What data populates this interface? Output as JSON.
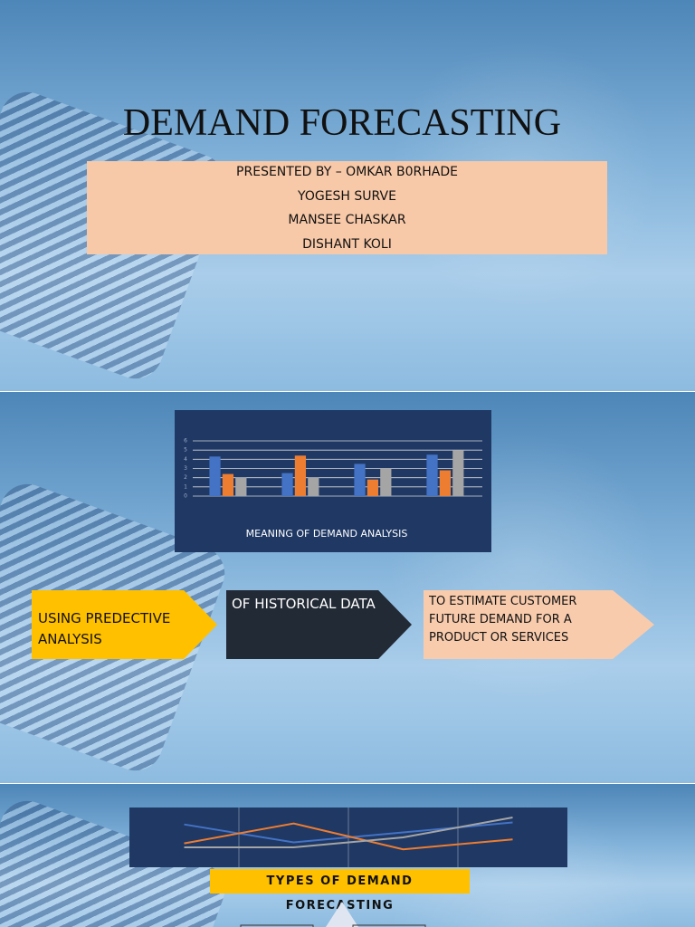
{
  "slide1": {
    "title": "DEMAND FORECASTING",
    "presenters": [
      "PRESENTED BY – OMKAR B0RHADE",
      "YOGESH SURVE",
      "MANSEE CHASKAR",
      "DISHANT KOLI"
    ]
  },
  "slide2": {
    "caption": "MEANING OF DEMAND ANALYSIS",
    "steps": [
      "USING PREDECTIVE ANALYSIS",
      "OF HISTORICAL DATA",
      "TO ESTIMATE CUSTOMER FUTURE DEMAND  FOR A PRODUCT OR SERVICES"
    ]
  },
  "slide3": {
    "caption": "TYPES OF DEMAND FORECASTING"
  },
  "chart_data": [
    {
      "type": "bar",
      "categories": [
        null,
        null,
        null,
        null
      ],
      "series": [
        {
          "color": "#4472c4",
          "values": [
            4.3,
            2.5,
            3.5,
            4.5
          ]
        },
        {
          "color": "#ed7d31",
          "values": [
            2.4,
            4.4,
            1.8,
            2.8
          ]
        },
        {
          "color": "#a5a5a5",
          "values": [
            2,
            2,
            3,
            5
          ]
        }
      ],
      "ylim": [
        0,
        6
      ],
      "yticks": [
        0,
        1,
        2,
        3,
        4,
        5,
        6
      ],
      "grid": true
    },
    {
      "type": "line",
      "categories": [
        null,
        null,
        null,
        null
      ],
      "series": [
        {
          "color": "#4472c4",
          "values": [
            4.3,
            2.5,
            3.5,
            4.5
          ]
        },
        {
          "color": "#ed7d31",
          "values": [
            2.4,
            4.4,
            1.8,
            2.8
          ]
        },
        {
          "color": "#a5a5a5",
          "values": [
            2,
            2,
            3,
            5
          ]
        }
      ],
      "ylim": [
        0,
        6
      ],
      "grid": true
    }
  ]
}
